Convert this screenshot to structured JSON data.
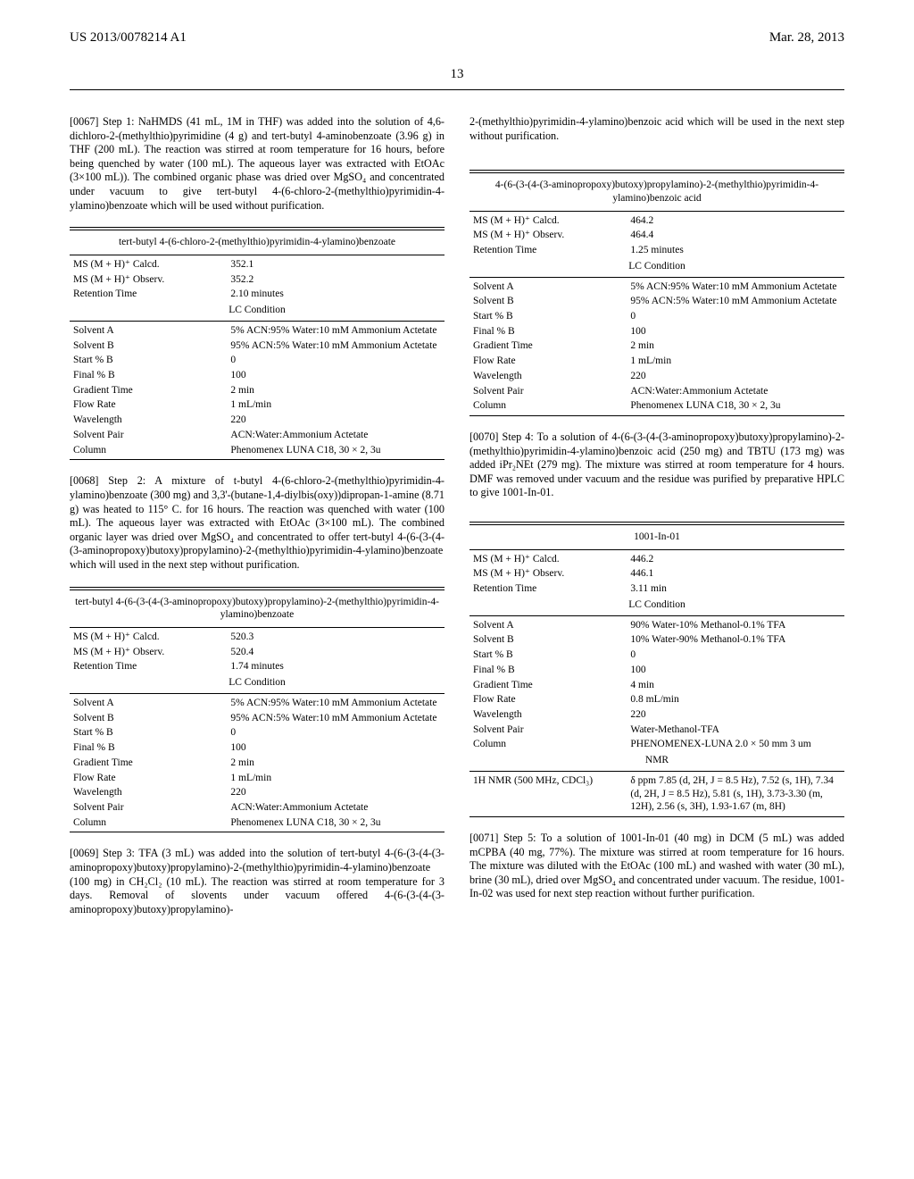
{
  "header": {
    "doc_id": "US 2013/0078214 A1",
    "pub_date": "Mar. 28, 2013",
    "page_number": "13"
  },
  "left": {
    "p0067": "[0067]   Step 1: NaHMDS (41 mL, 1M in THF) was added into the solution of 4,6-dichloro-2-(methylthio)pyrimidine (4 g) and tert-butyl 4-aminobenzoate (3.96 g) in THF (200 mL). The reaction was stirred at room temperature for 16 hours, before being quenched by water (100 mL). The aqueous layer was extracted with EtOAc (3×100 mL)). The combined organic phase was dried over MgSO₄ and concentrated under vacuum to give tert-butyl 4-(6-chloro-2-(methylthio)pyrimidin-4-ylamino)benzoate which will be used without purification.",
    "table1": {
      "title": "tert-butyl 4-(6-chloro-2-(methylthio)pyrimidin-4-ylamino)benzoate",
      "rows_top": [
        [
          "MS (M + H)⁺ Calcd.",
          "352.1"
        ],
        [
          "MS (M + H)⁺ Observ.",
          "352.2"
        ],
        [
          "Retention Time",
          "2.10 minutes"
        ]
      ],
      "lc_label": "LC Condition",
      "rows_bot": [
        [
          "Solvent A",
          "5% ACN:95% Water:10 mM Ammonium Actetate"
        ],
        [
          "Solvent B",
          "95% ACN:5% Water:10 mM Ammonium Actetate"
        ],
        [
          "Start % B",
          "0"
        ],
        [
          "Final % B",
          "100"
        ],
        [
          "Gradient Time",
          "2 min"
        ],
        [
          "Flow Rate",
          "1 mL/min"
        ],
        [
          "Wavelength",
          "220"
        ],
        [
          "Solvent Pair",
          "ACN:Water:Ammonium Actetate"
        ],
        [
          "Column",
          "Phenomenex LUNA C18, 30 × 2, 3u"
        ]
      ]
    },
    "p0068": "[0068]   Step 2: A mixture of t-butyl 4-(6-chloro-2-(methylthio)pyrimidin-4-ylamino)benzoate (300 mg) and 3,3'-(butane-1,4-diylbis(oxy))dipropan-1-amine (8.71 g) was heated to 115° C. for 16 hours. The reaction was quenched with water (100 mL). The aqueous layer was extracted with EtOAc (3×100 mL). The combined organic layer was dried over MgSO₄ and concentrated to offer tert-butyl 4-(6-(3-(4-(3-aminopropoxy)butoxy)propylamino)-2-(methylthio)pyrimidin-4-ylamino)benzoate which will used in the next step without purification.",
    "table2": {
      "title": "tert-butyl 4-(6-(3-(4-(3-aminopropoxy)butoxy)propylamino)-2-(methylthio)pyrimidin-4-ylamino)benzoate",
      "rows_top": [
        [
          "MS (M + H)⁺ Calcd.",
          "520.3"
        ],
        [
          "MS (M + H)⁺ Observ.",
          "520.4"
        ],
        [
          "Retention Time",
          "1.74 minutes"
        ]
      ],
      "lc_label": "LC Condition",
      "rows_bot": [
        [
          "Solvent A",
          "5% ACN:95% Water:10 mM Ammonium Actetate"
        ],
        [
          "Solvent B",
          "95% ACN:5% Water:10 mM Ammonium Actetate"
        ],
        [
          "Start % B",
          "0"
        ],
        [
          "Final % B",
          "100"
        ],
        [
          "Gradient Time",
          "2 min"
        ],
        [
          "Flow Rate",
          "1 mL/min"
        ],
        [
          "Wavelength",
          "220"
        ],
        [
          "Solvent Pair",
          "ACN:Water:Ammonium Actetate"
        ],
        [
          "Column",
          "Phenomenex LUNA C18, 30 × 2, 3u"
        ]
      ]
    },
    "p0069": "[0069]   Step 3: TFA (3 mL) was added into the solution of tert-butyl 4-(6-(3-(4-(3-aminopropoxy)butoxy)propylamino)-2-(methylthio)pyrimidin-4-ylamino)benzoate (100 mg) in CH₂Cl₂ (10 mL). The reaction was stirred at room temperature for 3 days. Removal of slovents under vacuum offered 4-(6-(3-(4-(3-aminopropoxy)butoxy)propylamino)-"
  },
  "right": {
    "cont": "2-(methylthio)pyrimidin-4-ylamino)benzoic acid which will be used in the next step without purification.",
    "table3": {
      "title": "4-(6-(3-(4-(3-aminopropoxy)butoxy)propylamino)-2-(methylthio)pyrimidin-4-ylamino)benzoic acid",
      "rows_top": [
        [
          "MS (M + H)⁺ Calcd.",
          "464.2"
        ],
        [
          "MS (M + H)⁺ Observ.",
          "464.4"
        ],
        [
          "Retention Time",
          "1.25 minutes"
        ]
      ],
      "lc_label": "LC Condition",
      "rows_bot": [
        [
          "Solvent A",
          "5% ACN:95% Water:10 mM Ammonium Actetate"
        ],
        [
          "Solvent B",
          "95% ACN:5% Water:10 mM Ammonium Actetate"
        ],
        [
          "Start % B",
          "0"
        ],
        [
          "Final % B",
          "100"
        ],
        [
          "Gradient Time",
          "2 min"
        ],
        [
          "Flow Rate",
          "1 mL/min"
        ],
        [
          "Wavelength",
          "220"
        ],
        [
          "Solvent Pair",
          "ACN:Water:Ammonium Actetate"
        ],
        [
          "Column",
          "Phenomenex LUNA C18, 30 × 2, 3u"
        ]
      ]
    },
    "p0070": "[0070]   Step 4: To a solution of 4-(6-(3-(4-(3-aminopropoxy)butoxy)propylamino)-2-(methylthio)pyrimidin-4-ylamino)benzoic acid (250 mg) and TBTU (173 mg) was added iPr₂NEt (279 mg). The mixture was stirred at room temperature for 4 hours. DMF was removed under vacuum and the residue was purified by preparative HPLC to give 1001-In-01.",
    "table4": {
      "title": "1001-In-01",
      "rows_top": [
        [
          "MS (M + H)⁺ Calcd.",
          "446.2"
        ],
        [
          "MS (M + H)⁺ Observ.",
          "446.1"
        ],
        [
          "Retention Time",
          "3.11 min"
        ]
      ],
      "lc_label": "LC Condition",
      "rows_bot": [
        [
          "Solvent A",
          "90% Water-10% Methanol-0.1% TFA"
        ],
        [
          "Solvent B",
          "10% Water-90% Methanol-0.1% TFA"
        ],
        [
          "Start % B",
          "0"
        ],
        [
          "Final % B",
          "100"
        ],
        [
          "Gradient Time",
          "4 min"
        ],
        [
          "Flow Rate",
          "0.8 mL/min"
        ],
        [
          "Wavelength",
          "220"
        ],
        [
          "Solvent Pair",
          "Water-Methanol-TFA"
        ],
        [
          "Column",
          "PHENOMENEX-LUNA 2.0 × 50 mm 3 um"
        ]
      ],
      "nmr_label": "NMR",
      "nmr_k": "1H NMR (500 MHz, CDCl₃)",
      "nmr_v": "δ ppm 7.85 (d, 2H, J = 8.5 Hz), 7.52 (s, 1H), 7.34 (d, 2H, J = 8.5 Hz), 5.81 (s, 1H), 3.73-3.30 (m, 12H), 2.56 (s, 3H), 1.93-1.67 (m, 8H)"
    },
    "p0071": "[0071]   Step 5: To a solution of 1001-In-01 (40 mg) in DCM (5 mL) was added mCPBA (40 mg, 77%). The mixture was stirred at room temperature for 16 hours. The mixture was diluted with the EtOAc (100 mL) and washed with water (30 mL), brine (30 mL), dried over MgSO₄ and concentrated under vacuum. The residue, 1001-In-02 was used for next step reaction without further purification."
  }
}
